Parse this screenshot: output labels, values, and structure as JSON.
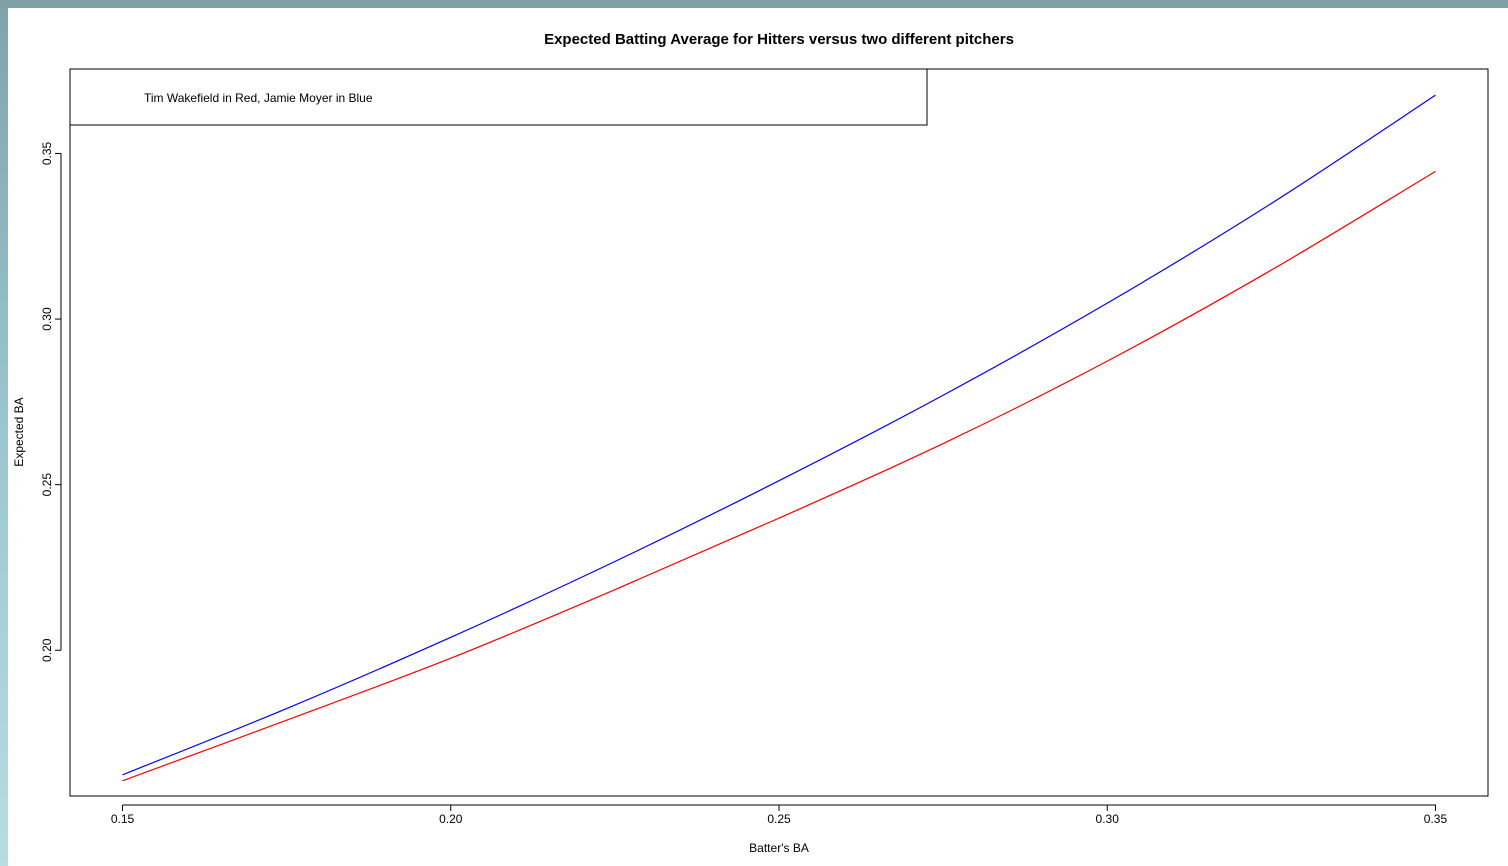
{
  "chart_data": {
    "type": "line",
    "title": "Expected Batting Average for Hitters versus two different pitchers",
    "xlabel": "Batter's BA",
    "ylabel": "Expected BA",
    "xlim": [
      0.142,
      0.358
    ],
    "ylim": [
      0.156,
      0.3755
    ],
    "x_ticks": [
      0.15,
      0.2,
      0.25,
      0.3,
      0.35
    ],
    "x_tick_labels": [
      "0.15",
      "0.20",
      "0.25",
      "0.30",
      "0.35"
    ],
    "y_ticks": [
      0.2,
      0.25,
      0.3,
      0.35
    ],
    "y_tick_labels": [
      "0.20",
      "0.25",
      "0.30",
      "0.35"
    ],
    "legend": {
      "text": "Tim Wakefield in Red, Jamie Moyer in Blue",
      "position": "top-left"
    },
    "grid": false,
    "x": [
      0.15,
      0.175,
      0.2,
      0.225,
      0.25,
      0.275,
      0.3,
      0.325,
      0.35
    ],
    "series": [
      {
        "color": "#0000ff",
        "values": [
          0.1624,
          0.1824,
          0.2039,
          0.2268,
          0.2512,
          0.277,
          0.3048,
          0.3349,
          0.3676
        ]
      },
      {
        "color": "#ff0000",
        "values": [
          0.1606,
          0.1789,
          0.1976,
          0.2183,
          0.2399,
          0.2624,
          0.2873,
          0.3148,
          0.3446
        ]
      }
    ]
  }
}
